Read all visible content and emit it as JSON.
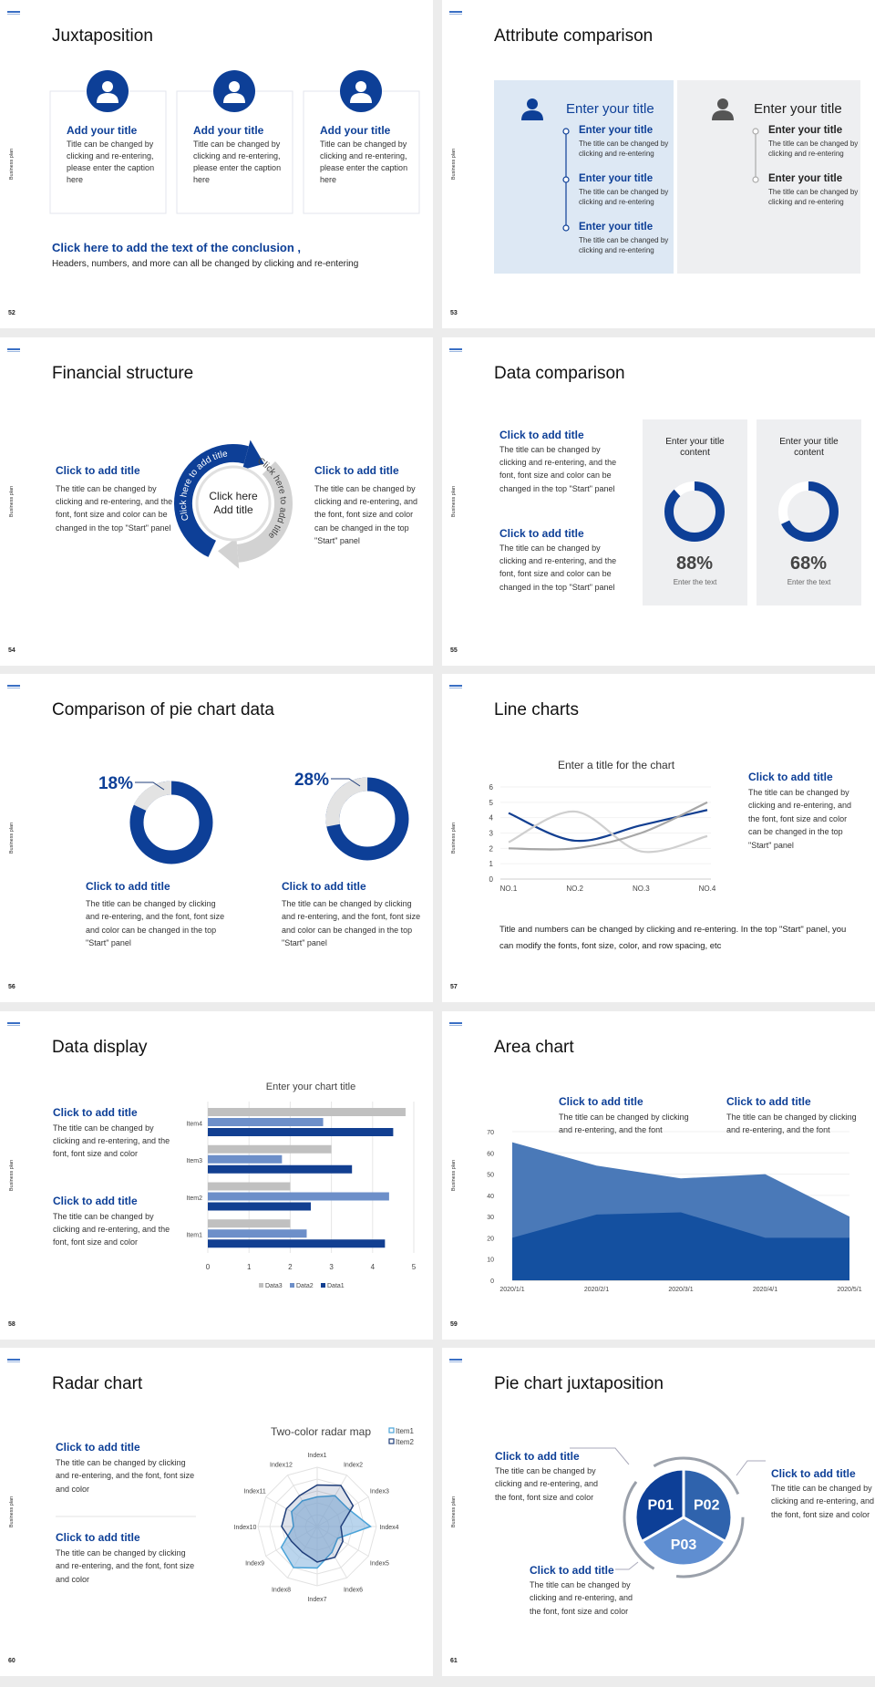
{
  "side_label": "Business plan",
  "slides": [
    {
      "type": "juxtaposition",
      "page": "52",
      "title": "Juxtaposition",
      "cards": [
        {
          "title": "Add your title",
          "text": "Title can be changed by clicking and re-entering, please enter the caption here"
        },
        {
          "title": "Add your title",
          "text": "Title can be changed by clicking and re-entering, please enter the caption here"
        },
        {
          "title": "Add your title",
          "text": "Title can be changed by clicking and re-entering, please enter the caption here"
        }
      ],
      "conclusion_title": "Click here to add the text of the conclusion ,",
      "conclusion_text": "Headers, numbers, and more can all be changed by clicking and re-entering"
    },
    {
      "type": "attributes",
      "page": "53",
      "title": "Attribute comparison",
      "panels": [
        {
          "heading": "Enter your title",
          "items": [
            {
              "title": "Enter your title",
              "text": "The title can be changed by clicking and re-entering"
            },
            {
              "title": "Enter your title",
              "text": "The title can be changed by clicking and re-entering"
            },
            {
              "title": "Enter your title",
              "text": "The title can be changed by clicking and re-entering"
            }
          ]
        },
        {
          "heading": "Enter your title",
          "items": [
            {
              "title": "Enter your title",
              "text": "The title can be changed by clicking and re-entering"
            },
            {
              "title": "Enter your title",
              "text": "The title can be changed by clicking and re-entering"
            }
          ]
        }
      ]
    },
    {
      "type": "cycle",
      "page": "54",
      "title": "Financial structure",
      "blocks": [
        {
          "title": "Click to add title",
          "text": "The title can be changed by clicking and re-entering, and the font, font size and color can be changed in the top \"Start\" panel"
        },
        {
          "title": "Click to add title",
          "text": "The title can be changed by clicking and re-entering, and the font, font size and color can be changed in the top \"Start\" panel"
        }
      ],
      "center": "Click here Add title",
      "arc_labels": [
        "Click here to add title",
        "Click here to add title"
      ]
    },
    {
      "type": "data_comparison",
      "page": "55",
      "title": "Data comparison",
      "blocks": [
        {
          "title": "Click to add title",
          "text": "The title can be changed by clicking and re-entering, and the font, font size and color can be changed in the top \"Start\" panel"
        },
        {
          "title": "Click to add title",
          "text": "The title can be changed by clicking and re-entering, and the font, font size and color can be changed in the top \"Start\" panel"
        }
      ],
      "cards": [
        {
          "heading": "Enter your title content",
          "value": 88,
          "value_label": "88%",
          "caption": "Enter the text",
          "color": "#0d3f97"
        },
        {
          "heading": "Enter your title content",
          "value": 68,
          "value_label": "68%",
          "caption": "Enter the text",
          "color": "#0d3f97"
        }
      ]
    },
    {
      "type": "pie_comparison",
      "page": "56",
      "title": "Comparison of pie chart data",
      "charts": [
        {
          "value": 18,
          "value_label": "18%",
          "color": "#e3e3e3",
          "title": "Click to add title",
          "text": "The title can be changed by clicking and re-entering, and the font, font size and color can be changed in the top \"Start\" panel"
        },
        {
          "value": 28,
          "value_label": "28%",
          "color": "#e3e3e3",
          "title": "Click to add title",
          "text": "The title can be changed by clicking and re-entering, and the font, font size and color can be changed in the top \"Start\" panel"
        }
      ]
    },
    {
      "type": "line",
      "page": "57",
      "title": "Line charts",
      "chart_title": "Enter a title for the chart",
      "categories": [
        "NO.1",
        "NO.2",
        "NO.3",
        "NO.4"
      ],
      "ylim": [
        0,
        6
      ],
      "yticks": [
        0,
        1,
        2,
        3,
        4,
        5,
        6
      ],
      "series": [
        {
          "color": "#123f91",
          "values": [
            4.3,
            2.5,
            3.5,
            4.5
          ]
        },
        {
          "color": "#cfcfcf",
          "values": [
            2.4,
            4.4,
            1.8,
            2.8
          ]
        },
        {
          "color": "#a6a6a6",
          "values": [
            2,
            2,
            3,
            5
          ]
        }
      ],
      "block": {
        "title": "Click to add title",
        "text": "The title can be changed by clicking and re-entering, and the font, font size and color can be changed in the top \"Start\" panel"
      },
      "caption": "Title and numbers can be changed by clicking and re-entering. In the top \"Start\" panel, you can modify the fonts, font size, color, and row spacing, etc"
    },
    {
      "type": "bar",
      "page": "58",
      "title": "Data display",
      "chart_title": "Enter your chart title",
      "categories": [
        "Item1",
        "Item2",
        "Item3",
        "Item4"
      ],
      "xlim": [
        0,
        5
      ],
      "xticks": [
        0,
        1,
        2,
        3,
        4,
        5
      ],
      "series": [
        {
          "name": "Data3",
          "color": "#c0c0c0",
          "values": [
            2,
            2,
            3,
            4.8
          ]
        },
        {
          "name": "Data2",
          "color": "#6d8fc9",
          "values": [
            2.4,
            4.4,
            1.8,
            2.8
          ]
        },
        {
          "name": "Data1",
          "color": "#123f91",
          "values": [
            4.3,
            2.5,
            3.5,
            4.5
          ]
        }
      ],
      "blocks": [
        {
          "title": "Click to add title",
          "text": "The title can be changed by clicking and re-entering, and the font, font size and color"
        },
        {
          "title": "Click to add title",
          "text": "The title can be changed by clicking and re-entering, and the font, font size and color"
        }
      ]
    },
    {
      "type": "area",
      "page": "59",
      "title": "Area chart",
      "x": [
        "2020/1/1",
        "2020/2/1",
        "2020/3/1",
        "2020/4/1",
        "2020/5/1"
      ],
      "ylim": [
        0,
        70
      ],
      "yticks": [
        0,
        10,
        20,
        30,
        40,
        50,
        60,
        70
      ],
      "series": [
        {
          "color": "#4a79b8",
          "values": [
            65,
            54,
            48,
            50,
            30
          ]
        },
        {
          "color": "#1450a0",
          "values": [
            20,
            31,
            32,
            20,
            20
          ]
        }
      ],
      "blocks": [
        {
          "title": "Click to add title",
          "text": "The title can be changed by clicking and re-entering, and the font"
        },
        {
          "title": "Click to add title",
          "text": "The title can be changed by clicking and re-entering, and the font"
        }
      ]
    },
    {
      "type": "radar",
      "page": "60",
      "title": "Radar chart",
      "chart_title": "Two-color radar map",
      "categories": [
        "Index1",
        "Index2",
        "Index3",
        "Index4",
        "Index5",
        "Index6",
        "Index7",
        "Index8",
        "Index9",
        "Index10",
        "Index11",
        "Index12"
      ],
      "rlim": [
        0,
        10
      ],
      "series": [
        {
          "name": "Item1",
          "color": "#4aa3d8",
          "values": [
            5,
            6,
            6,
            9,
            4,
            5,
            7,
            8,
            7,
            4,
            5,
            5
          ]
        },
        {
          "name": "Item2",
          "color": "#1f3e7a",
          "values": [
            7,
            8,
            7,
            4,
            5,
            6,
            6,
            5,
            5,
            6,
            6,
            6
          ]
        }
      ],
      "blocks": [
        {
          "title": "Click to add title",
          "text": "The title can be changed by clicking and re-entering, and the font, font size and color"
        },
        {
          "title": "Click to add title",
          "text": "The title can be changed by clicking and re-entering, and the font, font size and color"
        }
      ]
    },
    {
      "type": "pie_juxtaposition",
      "page": "61",
      "title": "Pie chart juxtaposition",
      "segments": [
        "P01",
        "P02",
        "P03"
      ],
      "blocks": [
        {
          "title": "Click to add title",
          "text": "The title can be changed by clicking and re-entering, and the font, font size and color"
        },
        {
          "title": "Click to add title",
          "text": "The title can be changed by clicking and re-entering, and the font, font size and color"
        },
        {
          "title": "Click to add title",
          "text": "The title can be changed by clicking and re-entering, and the font, font size and color"
        }
      ]
    }
  ]
}
